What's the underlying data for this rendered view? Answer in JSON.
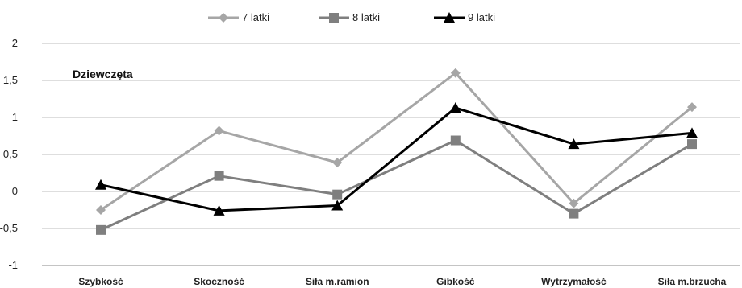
{
  "chart_data": {
    "type": "line",
    "annotation": "Dziewczęta",
    "categories": [
      "Szybkość",
      "Skoczność",
      "Siła m.ramion",
      "Gibkość",
      "Wytrzymałość",
      "Siła m.brzucha"
    ],
    "ylim": [
      -1,
      2
    ],
    "yticks": [
      -1,
      -0.5,
      0,
      0.5,
      1,
      1.5,
      2
    ],
    "ytick_labels": [
      "-1",
      "-0,5",
      "0",
      "0,5",
      "1",
      "1,5",
      "2"
    ],
    "grid": true,
    "legend_position": "top",
    "series": [
      {
        "name": "7 latki",
        "color": "#a6a6a6",
        "marker": "diamond",
        "values": [
          -0.25,
          0.82,
          0.39,
          1.6,
          -0.16,
          1.14
        ]
      },
      {
        "name": "8 latki",
        "color": "#7f7f7f",
        "marker": "square",
        "values": [
          -0.52,
          0.21,
          -0.04,
          0.69,
          -0.3,
          0.64
        ]
      },
      {
        "name": "9 latki",
        "color": "#000000",
        "marker": "triangle",
        "values": [
          0.09,
          -0.26,
          -0.19,
          1.13,
          0.64,
          0.79
        ]
      }
    ]
  }
}
